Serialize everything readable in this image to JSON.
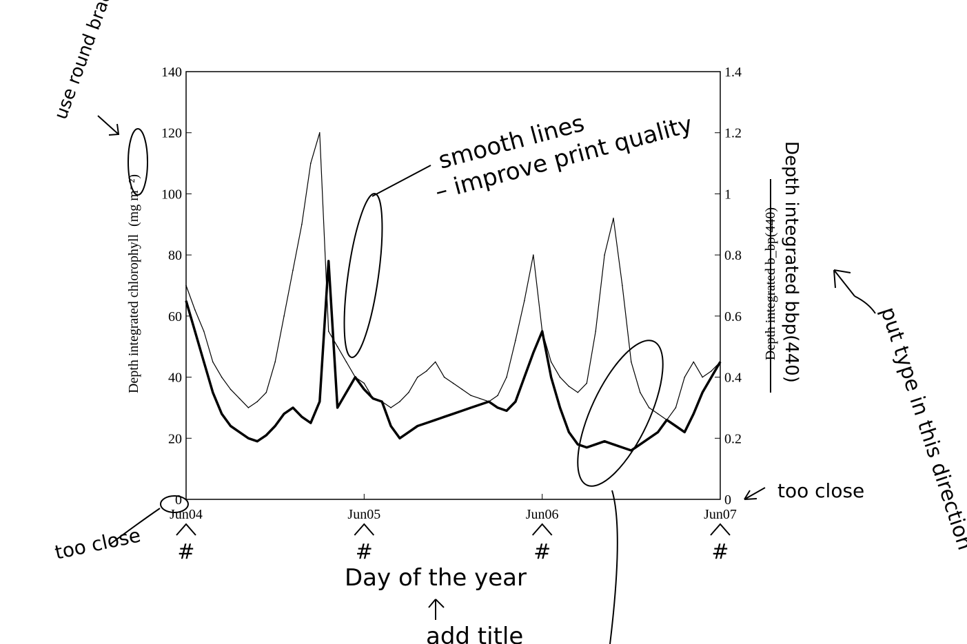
{
  "chart_data": {
    "type": "line",
    "x_range": [
      "Jun04",
      "Jun07"
    ],
    "x_ticks": [
      "Jun04",
      "Jun05",
      "Jun06",
      "Jun07"
    ],
    "y_left": {
      "label": "Depth integrated chlorophyll",
      "unit": "(mg m⁻²)",
      "ylim": [
        0,
        140
      ],
      "ticks": [
        "0",
        "20",
        "40",
        "60",
        "80",
        "100",
        "120",
        "140"
      ]
    },
    "y_right": {
      "label": "Depth integrated b_bp(440)",
      "ylim": [
        0,
        1.4
      ],
      "ticks": [
        "0",
        "0.2",
        "0.4",
        "0.6",
        "0.8",
        "1",
        "1.2",
        "1.4"
      ]
    },
    "grid": false,
    "series": [
      {
        "axis": "right",
        "style": "thin",
        "x": [
          0,
          0.05,
          0.1,
          0.15,
          0.2,
          0.25,
          0.3,
          0.35,
          0.4,
          0.45,
          0.5,
          0.55,
          0.6,
          0.65,
          0.7,
          0.75,
          0.8,
          0.85,
          0.9,
          0.95,
          1.0,
          1.02,
          1.05,
          1.1,
          1.15,
          1.2,
          1.25,
          1.3,
          1.35,
          1.4,
          1.45,
          1.5,
          1.55,
          1.6,
          1.65,
          1.7,
          1.75,
          1.8,
          1.85,
          1.9,
          1.95,
          2.0,
          2.05,
          2.1,
          2.15,
          2.2,
          2.25,
          2.3,
          2.35,
          2.4,
          2.45,
          2.5,
          2.55,
          2.6,
          2.65,
          2.7,
          2.75,
          2.8,
          2.85,
          2.9,
          2.95,
          3.0
        ],
        "values": [
          0.7,
          0.62,
          0.55,
          0.45,
          0.4,
          0.36,
          0.33,
          0.3,
          0.32,
          0.35,
          0.45,
          0.6,
          0.75,
          0.9,
          1.1,
          1.2,
          0.55,
          0.5,
          0.45,
          0.4,
          0.38,
          0.36,
          0.33,
          0.32,
          0.3,
          0.32,
          0.35,
          0.4,
          0.42,
          0.45,
          0.4,
          0.38,
          0.36,
          0.34,
          0.33,
          0.32,
          0.34,
          0.4,
          0.52,
          0.65,
          0.8,
          0.55,
          0.45,
          0.4,
          0.37,
          0.35,
          0.38,
          0.55,
          0.8,
          0.92,
          0.7,
          0.45,
          0.35,
          0.3,
          0.28,
          0.26,
          0.3,
          0.4,
          0.45,
          0.4,
          0.42,
          0.45
        ]
      },
      {
        "axis": "left",
        "style": "thick",
        "x": [
          0,
          0.05,
          0.1,
          0.15,
          0.2,
          0.25,
          0.3,
          0.35,
          0.4,
          0.45,
          0.5,
          0.55,
          0.6,
          0.65,
          0.7,
          0.75,
          0.8,
          0.85,
          0.9,
          0.95,
          1.0,
          1.05,
          1.1,
          1.15,
          1.2,
          1.25,
          1.3,
          1.35,
          1.4,
          1.45,
          1.5,
          1.55,
          1.6,
          1.65,
          1.7,
          1.75,
          1.8,
          1.85,
          1.9,
          1.95,
          2.0,
          2.05,
          2.1,
          2.15,
          2.2,
          2.25,
          2.3,
          2.35,
          2.4,
          2.45,
          2.5,
          2.55,
          2.6,
          2.65,
          2.7,
          2.75,
          2.8,
          2.85,
          2.9,
          2.95,
          3.0
        ],
        "values": [
          65,
          55,
          45,
          35,
          28,
          24,
          22,
          20,
          19,
          21,
          24,
          28,
          30,
          27,
          25,
          32,
          78,
          30,
          35,
          40,
          36,
          33,
          32,
          24,
          20,
          22,
          24,
          25,
          26,
          27,
          28,
          29,
          30,
          31,
          32,
          30,
          29,
          32,
          40,
          48,
          55,
          40,
          30,
          22,
          18,
          17,
          18,
          19,
          18,
          17,
          16,
          18,
          20,
          22,
          26,
          24,
          22,
          28,
          35,
          40,
          45
        ]
      }
    ]
  },
  "annotations": {
    "use_round_brackets": "use round brackets",
    "smooth_lines_1": "smooth lines",
    "smooth_lines_2": "– improve print quality",
    "right_label_handwritten": "Depth integrated bbp(440)",
    "put_type": "put type in this direction",
    "too_close_left": "too close",
    "too_close_right": "too close",
    "day_of_year": "Day of the year",
    "add_title": "add title",
    "hash": "#"
  }
}
